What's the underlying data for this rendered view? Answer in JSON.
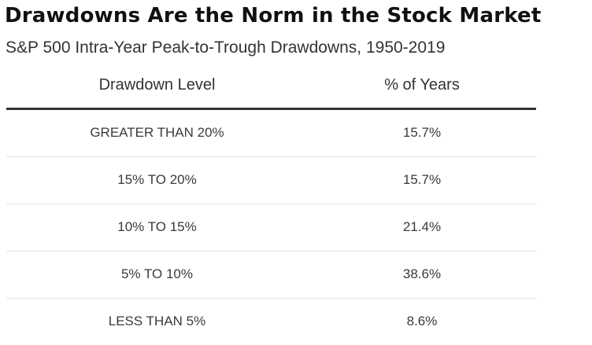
{
  "title": "Drawdowns Are the Norm in the Stock Market",
  "subtitle": "S&P 500 Intra-Year Peak-to-Trough Drawdowns, 1950-2019",
  "chart_data": {
    "type": "table",
    "title": "Drawdowns Are the Norm in the Stock Market",
    "subtitle": "S&P 500 Intra-Year Peak-to-Trough Drawdowns, 1950-2019",
    "columns": [
      "Drawdown Level",
      "% of Years"
    ],
    "rows": [
      [
        "GREATER THAN 20%",
        "15.7%"
      ],
      [
        "15% TO 20%",
        "15.7%"
      ],
      [
        "10% TO 15%",
        "21.4%"
      ],
      [
        "5% TO 10%",
        "38.6%"
      ],
      [
        "LESS THAN 5%",
        "8.6%"
      ]
    ],
    "values": [
      15.7,
      15.7,
      21.4,
      38.6,
      8.6
    ],
    "categories": [
      "GREATER THAN 20%",
      "15% TO 20%",
      "10% TO 15%",
      "5% TO 10%",
      "LESS THAN 5%"
    ]
  }
}
